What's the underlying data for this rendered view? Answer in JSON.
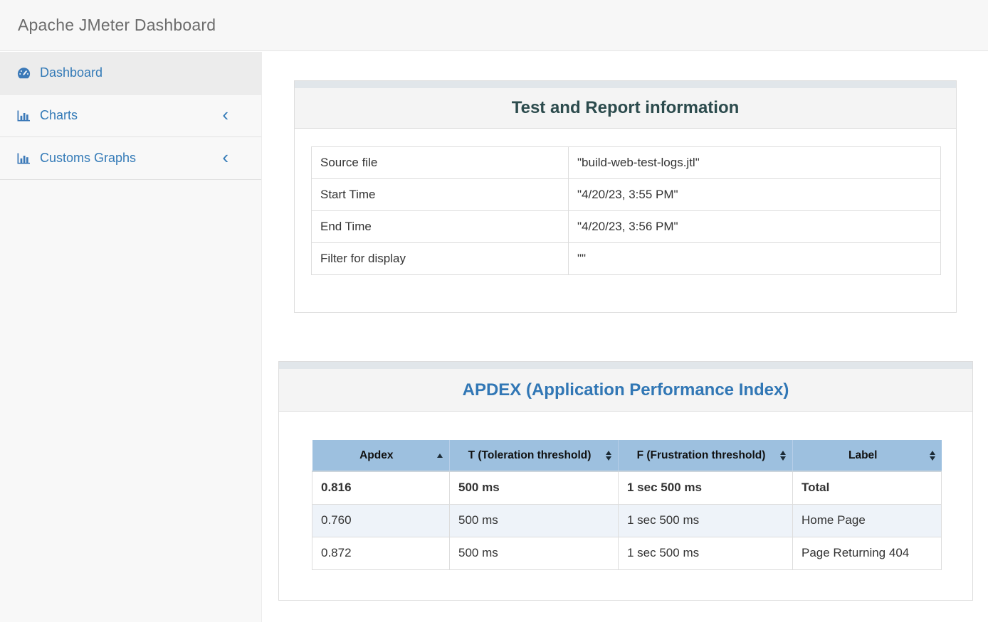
{
  "header": {
    "title": "Apache JMeter Dashboard"
  },
  "sidebar": {
    "items": [
      {
        "label": "Dashboard",
        "icon": "dashboard-gauge-icon",
        "active": true
      },
      {
        "label": "Charts",
        "icon": "bar-chart-icon",
        "active": false,
        "chevron": "‹"
      },
      {
        "label": "Customs Graphs",
        "icon": "bar-chart-icon",
        "active": false,
        "chevron": "‹"
      }
    ]
  },
  "test_info_panel": {
    "title": "Test and Report information",
    "rows": [
      {
        "label": "Source file",
        "value": "\"build-web-test-logs.jtl\""
      },
      {
        "label": "Start Time",
        "value": "\"4/20/23, 3:55 PM\""
      },
      {
        "label": "End Time",
        "value": "\"4/20/23, 3:56 PM\""
      },
      {
        "label": "Filter for display",
        "value": "\"\""
      }
    ]
  },
  "apdex_panel": {
    "title": "APDEX (Application Performance Index)",
    "columns": [
      {
        "label": "Apdex",
        "sort": "asc"
      },
      {
        "label": "T (Toleration threshold)",
        "sort": "both"
      },
      {
        "label": "F (Frustration threshold)",
        "sort": "both"
      },
      {
        "label": "Label",
        "sort": "both"
      }
    ],
    "rows": [
      {
        "apdex": "0.816",
        "t": "500 ms",
        "f": "1 sec 500 ms",
        "label": "Total",
        "bold": true
      },
      {
        "apdex": "0.760",
        "t": "500 ms",
        "f": "1 sec 500 ms",
        "label": "Home Page",
        "bold": false
      },
      {
        "apdex": "0.872",
        "t": "500 ms",
        "f": "1 sec 500 ms",
        "label": "Page Returning 404",
        "bold": false
      }
    ]
  },
  "colors": {
    "accent": "#337ab7",
    "topbar_bg": "#f7f7f7",
    "topbar_title": "#6c6c6c",
    "sidebar_bg": "#f8f8f8",
    "active_item_bg": "#ececec",
    "panel_strip": "#e1e6ea",
    "panel_heading_bg": "#f4f4f4",
    "border": "#dddddd",
    "test_title": "#2c4b4d",
    "apdex_title": "#3177b5",
    "table_header_bg": "#9dc0df",
    "stripe": "#eef3f9",
    "text": "#333333"
  }
}
